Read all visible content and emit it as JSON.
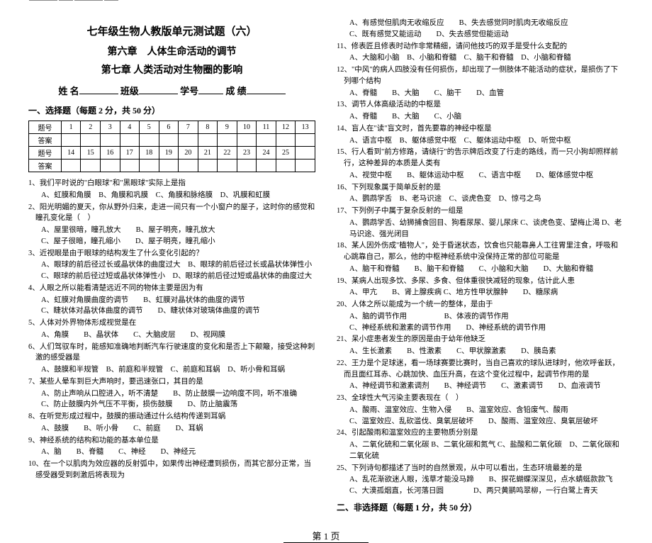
{
  "header": {
    "title_main": "七年级生物人教版单元测试题（六）",
    "title_sub1": "第六章　人体生命活动的调节",
    "title_sub2": "第七章 人类活动对生物圈的影响",
    "name_label": "姓 名",
    "class_label": "班级",
    "id_label": "学号",
    "score_label": "成 绩"
  },
  "section1_head": "一、选择题（每题 2 分，共 50 分）",
  "answer_table": {
    "row1_label": "题号",
    "row2_label": "答案",
    "nums1": [
      "1",
      "2",
      "3",
      "4",
      "5",
      "6",
      "7",
      "8",
      "9",
      "10",
      "11",
      "12",
      "13"
    ],
    "nums2": [
      "14",
      "15",
      "16",
      "17",
      "18",
      "19",
      "20",
      "21",
      "22",
      "23",
      "24",
      "25",
      ""
    ]
  },
  "questions_left": [
    {
      "q": "1、我们平时说的\"白眼球\"和\"黑眼球\"实际上是指",
      "opts": "A、虹膜和角膜　B、角膜和巩膜　C、角膜和脉络膜　D、巩膜和虹膜"
    },
    {
      "q": "2、阳光明媚的夏天，你从野外归来，走进一间只有一个小窗户的屋子，这时你的感觉和瞳孔变化是（　）",
      "opts": "A、屋里很暗，瞳孔放大　　B、屋子明亮，瞳孔放大\nC、屋子很暗，瞳孔缩小　　D、屋子明亮，瞳孔缩小"
    },
    {
      "q": "3、近视眼是由于眼球的结构发生了什么变化引起的？",
      "opts": "A、眼球的前后径过长或晶状体的曲度过大　B、眼球的前后径过长或晶状体弹性小\nC、眼球的前后径过短或晶状体弹性小　D、眼球的前后径过短或晶状体的曲度过大"
    },
    {
      "q": "4、人眼之所以能看清楚远近不同的物体主要是因为有",
      "opts": "A、虹膜对角膜曲度的调节　　B、虹膜对晶状体的曲度的调节\nC、睫状体对晶状体曲度的调节　　D、睫状体对玻璃体曲度的调节"
    },
    {
      "q": "5、人体对外界物体形成视觉是在",
      "opts": "A、角膜　　B、晶状体　　C、大脑皮层　　D、视网膜"
    },
    {
      "q": "6、人们驾驭车时，能感知准确地判断汽车行驶速度的变化和是否上下颠簸，接受这种刺激的感受器是",
      "opts": "A、鼓膜和半规管　B、前庭和半规管　C、前庭和耳蜗　D、听小骨和耳蜗"
    },
    {
      "q": "7、某些人晕车到巨大声响时，要迅速张口，其目的是",
      "opts": "A、防止声响从口腔进入，听不清楚　　B、防止鼓膜一边响度不同，听不准确\nC、防止鼓膜内外气压不平衡，损伤鼓膜　　D、防止脑震荡"
    },
    {
      "q": "8、在听觉形成过程中，鼓膜的振动通过什么结构传递到耳蜗",
      "opts": "A、鼓膜　　B、听小骨　　C、前庭　　D、耳蜗"
    },
    {
      "q": "9、神经系统的结构和功能的基本单位是",
      "opts": "A、脑　　B、脊髓　　C、神经　　D、神经元"
    },
    {
      "q": "10、在一个以肌肉为效应器的反射弧中，如果传出神经遭到损伤，而其它部分正常，当感受器受到刺激后将表现为",
      "opts": ""
    }
  ],
  "questions_right": [
    {
      "q": "",
      "opts": "A、有感觉但肌肉无收缩反应　　B、失去感觉同时肌肉无收缩反应\nC、既有感觉又能运动　　D、失去感觉但能运动"
    },
    {
      "q": "11、修表匠且修表时动作非常精细，请问他技巧的双手是受什么支配的",
      "opts": "A、大脑和小脑　B、小脑和脊髓　C、脑干和脊髓　D、小脑和脊髓"
    },
    {
      "q": "12、\"中风\"的病人四肢没有任何损伤，却出现了一侧肢体不能活动的症状，是损伤了下列哪个结构",
      "opts": "A、脊髓　　B、大脑　　C、脑干　　D、血管"
    },
    {
      "q": "13、调节人体高级活动的中枢是",
      "opts": "A、脊髓　　B、大脑　　C、小脑"
    },
    {
      "q": "14、盲人在\"读\"盲文时，首先要靠的神经中枢是",
      "opts": "A、语言中枢　B、躯体感觉中枢　C、躯体运动中枢　D、听觉中枢"
    },
    {
      "q": "15、行人看到\"前方修路，请绕行\"的告示牌后改变了行走的路线，而一只小狗却照样前行，这种差异的本质是人类有",
      "opts": "A、视觉中枢　　B、躯体运动中枢　　C、语言中枢　　D、躯体感觉中枢"
    },
    {
      "q": "16、下列现象属于简单反射的是",
      "opts": "A、鹦鹉学舌　B、老马识途　C、谈虎色变　D、惊弓之鸟"
    },
    {
      "q": "17、下列例子中属于复杂反射的一组是",
      "opts": "A、鹦鹉学舌、幼狮捕食回目、狗看尿尿、婴儿尿床 C、谈虎色变、望梅止渴 D、老马识途、强光闭目"
    },
    {
      "q": "18、某人因外伤成\"植物人\"，处于昏迷状态，饮食也只能靠鼻人工往胃里注食，呼吸和心跳靠自己，那么，他的中枢神经系统中没保持正常的部位可能是",
      "opts": "A、脑干和脊髓　　B、脑干和脊髓　　C、小脑和大脑　　D、大脑和脊髓"
    },
    {
      "q": "19、某病人出现多饮、多尿、多食、但体重很快减轻的现象，估计此人患",
      "opts": "A、甲亢　　B、肾上腺疾病 C、地方性甲状腺肿　　D、糖尿病"
    },
    {
      "q": "20、人体之所以能成为一个统一的整体，是由于",
      "opts": "A、脑的调节作用　　　　　B、体液的调节作用\nC、神经系统和激素的调节作用　　D、神经系统的调节作用"
    },
    {
      "q": "21、呆小症患者发生的原因是由于幼年他缺乏",
      "opts": "A、生长激素　　B、性激素　　C、甲状腺激素　　D、胰岛素"
    },
    {
      "q": "22、王力是个足球迷，看一场球赛要比赛时，当自己喜欢的球队进球时，他欢呼雀跃，而且面红耳赤、心跳加快、血压升高，在这个变化过程中，起调节作用的是",
      "opts": "A、神经调节和激素调剂　　B、神经调节　　C、激素调节　　D、血液调节"
    },
    {
      "q": "23、全球性大气污染主要表现在（　）",
      "opts": "A、酸雨、温室效应、生物入侵　　B、温室效应、含铅废气、酸雨\nC、温室效应、乱砍滥伐、臭氧层破坏　　D、酸雨、温室效应、臭氧层破坏"
    },
    {
      "q": "24、引起酸雨和温室效应的主要物质分别是",
      "opts": "A、二氧化硫和二氧化碳 B、二氧化碳和氮气 C、盐酸和二氧化碳　D、二氧化碳和二氧化硫"
    },
    {
      "q": "25、下列诗句都描述了当时的自然景观，从中可以看出，生态环境最差的是",
      "opts": "A、乱花渐欲迷人眼，浅草才能没马蹄　　B、探花蝴蝶深深见，点水蜻蜓款款飞\nC、大漠孤烟直，长河落日圆　　　　D、两只黄鹂鸣翠柳，一行白鹭上青天"
    }
  ],
  "section2_head": "二、非选择题（每题 1 分，共 50 分）",
  "footer": "第 1 页"
}
